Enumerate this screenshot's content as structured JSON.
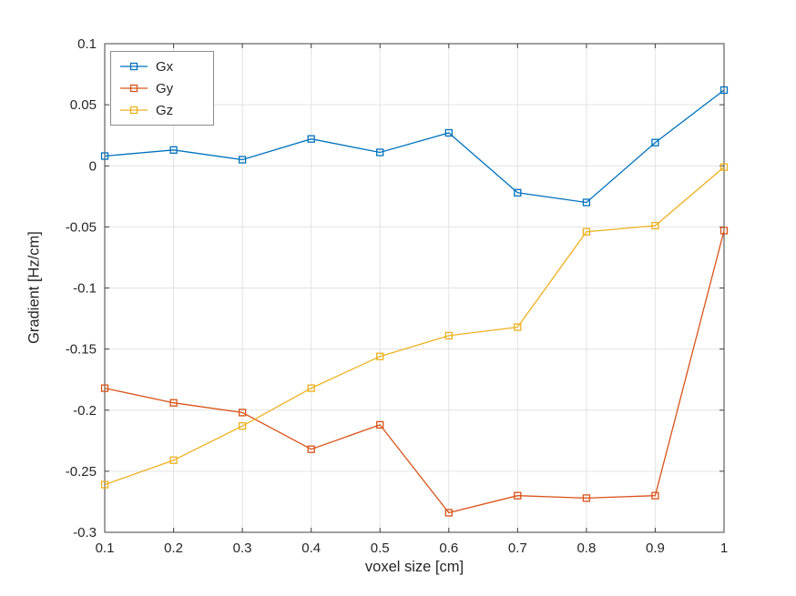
{
  "figure": {
    "background": "#ffffff"
  },
  "chart_data": {
    "type": "line",
    "title": "",
    "xlabel": "voxel size [cm]",
    "ylabel": "Gradient [Hz/cm]",
    "x": [
      0.1,
      0.2,
      0.3,
      0.4,
      0.5,
      0.6,
      0.7,
      0.8,
      0.9,
      1.0
    ],
    "series": [
      {
        "name": "Gx",
        "color": "#0072BD",
        "marker": "square",
        "values": [
          0.008,
          0.013,
          0.005,
          0.022,
          0.011,
          0.027,
          -0.022,
          -0.03,
          0.019,
          0.062
        ]
      },
      {
        "name": "Gy",
        "color": "#D95319",
        "marker": "square",
        "values": [
          -0.182,
          -0.194,
          -0.202,
          -0.232,
          -0.212,
          -0.284,
          -0.27,
          -0.272,
          -0.27,
          -0.053
        ]
      },
      {
        "name": "Gz",
        "color": "#EDB120",
        "marker": "square",
        "values": [
          -0.261,
          -0.241,
          -0.213,
          -0.182,
          -0.156,
          -0.139,
          -0.132,
          -0.054,
          -0.049,
          -0.001
        ]
      }
    ],
    "xlim": [
      0.1,
      1
    ],
    "ylim": [
      -0.3,
      0.1
    ],
    "x_ticks": [
      0.1,
      0.2,
      0.3,
      0.4,
      0.5,
      0.6,
      0.7,
      0.8,
      0.9,
      1
    ],
    "x_tick_labels": [
      "0.1",
      "0.2",
      "0.3",
      "0.4",
      "0.5",
      "0.6",
      "0.7",
      "0.8",
      "0.9",
      "1"
    ],
    "y_ticks": [
      0.1,
      0.05,
      0,
      -0.05,
      -0.1,
      -0.15,
      -0.2,
      -0.25,
      -0.3
    ],
    "y_tick_labels": [
      "0.1",
      "0.05",
      "0",
      "-0.05",
      "-0.1",
      "-0.15",
      "-0.2",
      "-0.25",
      "-0.3"
    ],
    "grid": true,
    "legend": {
      "position": "top-left",
      "entries": [
        "Gx",
        "Gy",
        "Gz"
      ]
    },
    "colors": {
      "grid": "#e3e3e3",
      "axis": "#404040",
      "text": "#262626"
    }
  }
}
